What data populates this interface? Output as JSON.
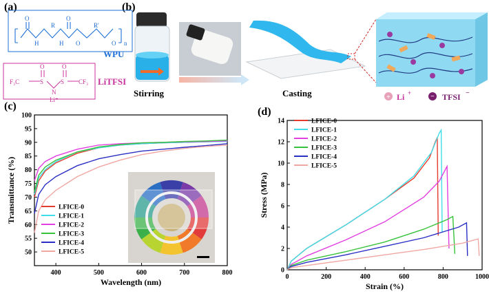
{
  "panel_labels": {
    "a": "(a)",
    "b": "(b)",
    "c": "(c)",
    "d": "(d)"
  },
  "schematic": {
    "wpu_label": "WPU",
    "litfsi_label": "LiTFSI",
    "stirring_label": "Stirring",
    "casting_label": "Casting",
    "li_label": "Li",
    "tfsi_label": "TFSI",
    "wpu_structure": {
      "n": "n",
      "r": "R",
      "r_prime": "R'",
      "o": "O",
      "nh": "H"
    },
    "litfsi_structure": {
      "cf3": "F₃C",
      "cf3_right": "CF₃",
      "s": "S",
      "n": "N",
      "o": "O",
      "li": "Li⁺"
    },
    "colors": {
      "wpu": "#1e6fd6",
      "litfsi": "#c8329b",
      "li_symbol": "#c8329b",
      "tfsi_symbol": "#7a1f6e"
    }
  },
  "chart_data": [
    {
      "id": "transmittance",
      "type": "line",
      "xlabel": "Wavelength (nm)",
      "ylabel": "Transmittance (%)",
      "xlim": [
        350,
        800
      ],
      "ylim": [
        45,
        100
      ],
      "xticks": [
        400,
        500,
        600,
        700,
        800
      ],
      "yticks": [
        50,
        55,
        60,
        65,
        70,
        75,
        80,
        85,
        90,
        95,
        100
      ],
      "legend_position": "bottom-left",
      "x": [
        350,
        360,
        375,
        400,
        450,
        500,
        550,
        600,
        650,
        700,
        750,
        800
      ],
      "series": [
        {
          "name": "LFICE-0",
          "color": "#e53b2c",
          "values": [
            70,
            76,
            79.5,
            82.5,
            86,
            88,
            89,
            89.5,
            89.8,
            90,
            90.2,
            90.5
          ]
        },
        {
          "name": "LFICE-1",
          "color": "#3fdde8",
          "values": [
            71,
            77,
            80,
            83,
            86.5,
            88,
            89,
            89.5,
            89.8,
            90,
            90.2,
            90.3
          ]
        },
        {
          "name": "LFICE-2",
          "color": "#e23ee0",
          "values": [
            76,
            80.5,
            83,
            85,
            87.5,
            89,
            89.5,
            89.8,
            90,
            90.2,
            90.3,
            90.5
          ]
        },
        {
          "name": "LFICE-3",
          "color": "#36c23a",
          "values": [
            72,
            78,
            81,
            83.5,
            86.5,
            88.3,
            89.2,
            89.8,
            90,
            90.3,
            90.5,
            90.8
          ]
        },
        {
          "name": "LFICE-4",
          "color": "#2a2fc4",
          "values": [
            64,
            71,
            74.5,
            77.5,
            81.5,
            84,
            85.5,
            86.8,
            87.5,
            88.2,
            88.8,
            89.5
          ]
        },
        {
          "name": "LFICE-5",
          "color": "#f0a6a1",
          "values": [
            57,
            65,
            69,
            72.5,
            77.5,
            81,
            83.5,
            85.5,
            86.8,
            87.8,
            88.5,
            89
          ]
        }
      ]
    },
    {
      "id": "stress_strain",
      "type": "line",
      "xlabel": "Strain (%)",
      "ylabel": "Stress (MPa)",
      "xlim": [
        0,
        1000
      ],
      "ylim": [
        0,
        14
      ],
      "xticks": [
        0,
        200,
        400,
        600,
        800,
        1000
      ],
      "yticks": [
        0,
        2,
        4,
        6,
        8,
        10,
        12,
        14
      ],
      "legend_position": "top-left",
      "series": [
        {
          "name": "LFICE-0",
          "color": "#e53b2c",
          "x": [
            0,
            20,
            100,
            300,
            500,
            650,
            730,
            760,
            770,
            775
          ],
          "y": [
            0,
            0.8,
            2.0,
            4.2,
            6.6,
            8.6,
            10.5,
            12.0,
            12.4,
            3.2
          ]
        },
        {
          "name": "LFICE-1",
          "color": "#3fdde8",
          "x": [
            0,
            20,
            100,
            300,
            500,
            650,
            740,
            780,
            790,
            795
          ],
          "y": [
            0,
            0.8,
            2.0,
            4.2,
            6.6,
            8.8,
            11.0,
            12.8,
            13.1,
            3.5
          ]
        },
        {
          "name": "LFICE-2",
          "color": "#e23ee0",
          "x": [
            0,
            20,
            100,
            300,
            500,
            700,
            780,
            820,
            830
          ],
          "y": [
            0,
            0.5,
            1.3,
            2.8,
            4.5,
            6.8,
            8.3,
            9.7,
            2.0
          ]
        },
        {
          "name": "LFICE-3",
          "color": "#36c23a",
          "x": [
            0,
            20,
            100,
            300,
            500,
            700,
            820,
            850,
            860
          ],
          "y": [
            0,
            0.4,
            0.9,
            1.7,
            2.6,
            3.8,
            4.7,
            5.0,
            1.5
          ]
        },
        {
          "name": "LFICE-4",
          "color": "#2a2fc4",
          "x": [
            0,
            20,
            100,
            300,
            500,
            700,
            880,
            920,
            925
          ],
          "y": [
            0,
            0.3,
            0.7,
            1.4,
            2.2,
            3.0,
            4.0,
            4.4,
            1.3
          ]
        },
        {
          "name": "LFICE-5",
          "color": "#f0a6a1",
          "x": [
            0,
            20,
            100,
            300,
            500,
            700,
            900,
            980,
            985
          ],
          "y": [
            0,
            0.2,
            0.4,
            0.9,
            1.4,
            1.9,
            2.5,
            2.9,
            1.3
          ]
        }
      ]
    }
  ]
}
